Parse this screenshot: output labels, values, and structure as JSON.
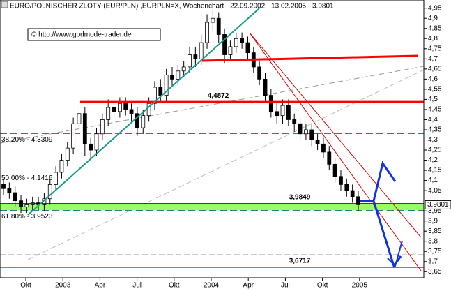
{
  "chart_data": {
    "type": "candlestick",
    "title": "EURO/POLNISCHER ZLOTY (EUR/PLN) ,EURPLN=X, Wochenchart - 22.09.2002 - 13.02.2005 - 3.9801",
    "copyright": "© http://www.godmode-trader.de",
    "categories": [
      null,
      null,
      null,
      null,
      null,
      null,
      null,
      null,
      null,
      null,
      null,
      null,
      null,
      null,
      null,
      null,
      null,
      null,
      null,
      null,
      null,
      null,
      null,
      null,
      null,
      null,
      null,
      null,
      null,
      null,
      null,
      null,
      null,
      null,
      null,
      null,
      null,
      null,
      null,
      null,
      null,
      null,
      null,
      null,
      null,
      null,
      null,
      null,
      null,
      null,
      null,
      null,
      null,
      null,
      null,
      null,
      null,
      null,
      null,
      null,
      null,
      null
    ],
    "open": [
      4.08,
      4.06,
      4.04,
      4.0,
      3.97,
      3.98,
      3.99,
      3.98,
      4.01,
      4.08,
      4.14,
      4.2,
      4.26,
      4.38,
      4.43,
      4.28,
      4.25,
      4.33,
      4.4,
      4.46,
      4.44,
      4.48,
      4.45,
      4.43,
      4.36,
      4.42,
      4.48,
      4.56,
      4.52,
      4.62,
      4.6,
      4.64,
      4.66,
      4.72,
      4.7,
      4.78,
      4.88,
      4.9,
      4.82,
      4.72,
      4.76,
      4.8,
      4.78,
      4.73,
      4.66,
      4.6,
      4.52,
      4.44,
      4.42,
      4.47,
      4.4,
      4.38,
      4.33,
      4.35,
      4.3,
      4.28,
      4.24,
      4.18,
      4.12,
      4.08,
      4.05,
      4.02
    ],
    "high": [
      4.11,
      4.09,
      4.07,
      4.03,
      4.01,
      4.02,
      4.02,
      4.04,
      4.11,
      4.17,
      4.23,
      4.29,
      4.41,
      4.49,
      4.46,
      4.31,
      4.36,
      4.43,
      4.5,
      4.5,
      4.51,
      4.51,
      4.48,
      4.46,
      4.45,
      4.51,
      4.59,
      4.6,
      4.65,
      4.66,
      4.67,
      4.69,
      4.76,
      4.76,
      4.82,
      4.92,
      4.94,
      4.93,
      4.85,
      4.79,
      4.83,
      4.83,
      4.81,
      4.76,
      4.69,
      4.63,
      4.55,
      4.48,
      4.5,
      4.5,
      4.43,
      4.41,
      4.38,
      4.38,
      4.33,
      4.31,
      4.27,
      4.21,
      4.15,
      4.11,
      4.08,
      4.05
    ],
    "low": [
      4.03,
      4.01,
      3.97,
      3.94,
      3.94,
      3.95,
      3.95,
      3.95,
      3.98,
      4.05,
      4.11,
      4.17,
      4.23,
      4.35,
      4.22,
      4.21,
      4.22,
      4.3,
      4.37,
      4.41,
      4.41,
      4.42,
      4.39,
      4.32,
      4.33,
      4.39,
      4.45,
      4.49,
      4.49,
      4.56,
      4.57,
      4.61,
      4.63,
      4.66,
      4.67,
      4.75,
      4.84,
      4.78,
      4.68,
      4.69,
      4.73,
      4.75,
      4.7,
      4.63,
      4.57,
      4.49,
      4.41,
      4.38,
      4.38,
      4.37,
      4.34,
      4.3,
      4.3,
      4.27,
      4.25,
      4.21,
      4.15,
      4.09,
      4.05,
      4.02,
      3.99,
      3.95
    ],
    "close": [
      4.06,
      4.04,
      4.0,
      3.97,
      3.98,
      3.99,
      3.98,
      4.01,
      4.08,
      4.14,
      4.2,
      4.26,
      4.38,
      4.43,
      4.28,
      4.25,
      4.33,
      4.4,
      4.46,
      4.44,
      4.48,
      4.45,
      4.43,
      4.36,
      4.42,
      4.48,
      4.56,
      4.52,
      4.62,
      4.6,
      4.64,
      4.66,
      4.72,
      4.7,
      4.78,
      4.88,
      4.9,
      4.82,
      4.72,
      4.76,
      4.8,
      4.78,
      4.73,
      4.66,
      4.6,
      4.52,
      4.44,
      4.42,
      4.47,
      4.4,
      4.38,
      4.33,
      4.35,
      4.3,
      4.28,
      4.24,
      4.18,
      4.12,
      4.08,
      4.05,
      4.02,
      3.98
    ],
    "up_color": "#ffffff",
    "down_color": "#000000",
    "x_labels": [
      "Okt",
      "2003",
      "Apr",
      "Jul",
      "Okt",
      "2004",
      "Apr",
      "Jul",
      "Okt",
      "2005"
    ],
    "ylim": [
      3.62,
      4.98
    ],
    "yticks": [
      {
        "value": 3.65,
        "label": "3,65"
      },
      {
        "value": 3.7,
        "label": "3,7"
      },
      {
        "value": 3.75,
        "label": "3,75"
      },
      {
        "value": 3.8,
        "label": "3,8"
      },
      {
        "value": 3.85,
        "label": "3,85"
      },
      {
        "value": 3.9,
        "label": "3,9"
      },
      {
        "value": 3.95,
        "label": "3,95"
      },
      {
        "value": 4.05,
        "label": "4,05"
      },
      {
        "value": 4.1,
        "label": "4,1"
      },
      {
        "value": 4.15,
        "label": "4,15"
      },
      {
        "value": 4.2,
        "label": "4,2"
      },
      {
        "value": 4.25,
        "label": "4,25"
      },
      {
        "value": 4.3,
        "label": "4,3"
      },
      {
        "value": 4.35,
        "label": "4,35"
      },
      {
        "value": 4.4,
        "label": "4,4"
      },
      {
        "value": 4.45,
        "label": "4,45"
      },
      {
        "value": 4.5,
        "label": "4,5"
      },
      {
        "value": 4.55,
        "label": "4,55"
      },
      {
        "value": 4.6,
        "label": "4,6"
      },
      {
        "value": 4.65,
        "label": "4,65"
      },
      {
        "value": 4.7,
        "label": "4,7"
      },
      {
        "value": 4.75,
        "label": "4,75"
      },
      {
        "value": 4.8,
        "label": "4,8"
      },
      {
        "value": 4.85,
        "label": "4,85"
      },
      {
        "value": 4.9,
        "label": "4,9"
      },
      {
        "value": 4.95,
        "label": "4,95"
      }
    ],
    "last_price": {
      "value": 3.9801,
      "label": "3,9801"
    },
    "levels": [
      {
        "value": 4.4872,
        "label": "4,4872",
        "color": "#ff0000"
      },
      {
        "value": 3.9849,
        "label": "3,9849",
        "color": "#000000"
      },
      {
        "value": 3.6717,
        "label": "3,6717",
        "color": "#008080"
      }
    ],
    "fib_levels": [
      {
        "value": 4.3309,
        "label": "38.20% - 4.3309"
      },
      {
        "value": 4.1416,
        "label": "50.00% - 4.1416"
      },
      {
        "value": 3.9523,
        "label": "61.80% - 3.9523"
      }
    ],
    "zone_color": "#99ff66",
    "fib_color": "#2a8080"
  }
}
